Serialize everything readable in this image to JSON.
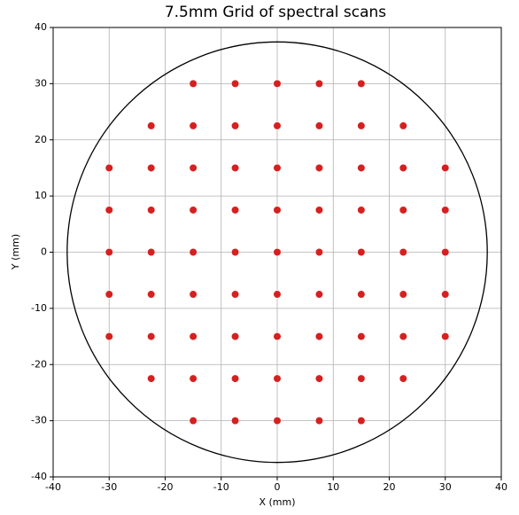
{
  "chart_data": {
    "type": "scatter",
    "title": "7.5mm Grid of spectral scans",
    "x_label": "X (mm)",
    "y_label": "Y (mm)",
    "x": [
      -15,
      -7.5,
      0,
      7.5,
      15,
      -22.5,
      -15,
      -7.5,
      0,
      7.5,
      15,
      22.5,
      -30,
      -22.5,
      -15,
      -7.5,
      0,
      7.5,
      15,
      22.5,
      30,
      -30,
      -22.5,
      -15,
      -7.5,
      0,
      7.5,
      15,
      22.5,
      30,
      -30,
      -22.5,
      -15,
      -7.5,
      0,
      7.5,
      15,
      22.5,
      30,
      -30,
      -22.5,
      -15,
      -7.5,
      0,
      7.5,
      15,
      22.5,
      30,
      -30,
      -22.5,
      -15,
      -7.5,
      0,
      7.5,
      15,
      22.5,
      30,
      -22.5,
      -15,
      -7.5,
      0,
      7.5,
      15,
      22.5,
      -15,
      -7.5,
      0,
      7.5,
      15
    ],
    "y": [
      30,
      30,
      30,
      30,
      30,
      22.5,
      22.5,
      22.5,
      22.5,
      22.5,
      22.5,
      22.5,
      15,
      15,
      15,
      15,
      15,
      15,
      15,
      15,
      15,
      7.5,
      7.5,
      7.5,
      7.5,
      7.5,
      7.5,
      7.5,
      7.5,
      7.5,
      0,
      0,
      0,
      0,
      0,
      0,
      0,
      0,
      0,
      -7.5,
      -7.5,
      -7.5,
      -7.5,
      -7.5,
      -7.5,
      -7.5,
      -7.5,
      -7.5,
      -15,
      -15,
      -15,
      -15,
      -15,
      -15,
      -15,
      -15,
      -15,
      -22.5,
      -22.5,
      -22.5,
      -22.5,
      -22.5,
      -22.5,
      -22.5,
      -30,
      -30,
      -30,
      -30,
      -30
    ],
    "color": "#d62020",
    "circle": {
      "center": [
        0,
        0
      ],
      "radius": 37.5,
      "color": "#000000"
    },
    "xlim": [
      -40,
      40
    ],
    "ylim": [
      -40,
      40
    ],
    "xticks": [
      -40,
      -30,
      -20,
      -10,
      0,
      10,
      20,
      30,
      40
    ],
    "yticks": [
      -40,
      -30,
      -20,
      -10,
      0,
      10,
      20,
      30,
      40
    ],
    "grid": true
  }
}
